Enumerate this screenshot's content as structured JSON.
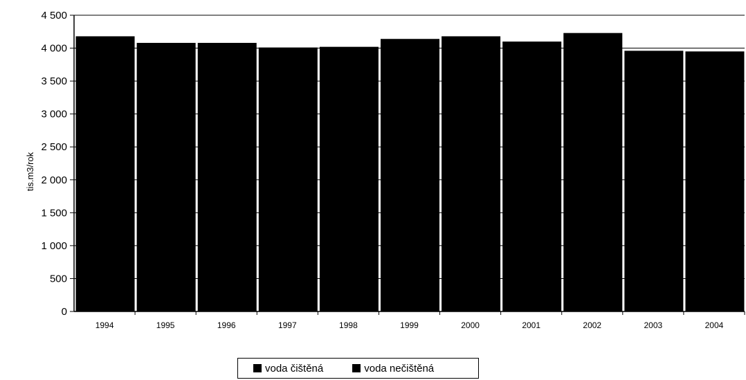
{
  "chart_data": {
    "type": "bar",
    "stacked": true,
    "categories": [
      "1994",
      "1995",
      "1996",
      "1997",
      "1998",
      "1999",
      "2000",
      "2001",
      "2002",
      "2003",
      "2004"
    ],
    "series": [
      {
        "name": "voda čištěná",
        "values": [
          0,
          0,
          0,
          0,
          0,
          0,
          0,
          0,
          0,
          0,
          0
        ],
        "color": "#000000"
      },
      {
        "name": "voda nečištěná",
        "values": [
          4180,
          4080,
          4080,
          4010,
          4020,
          4140,
          4180,
          4100,
          4230,
          3960,
          3950
        ],
        "color": "#000000"
      }
    ],
    "ylabel": "tis.m3/rok",
    "ylim": [
      0,
      4500
    ],
    "yticks": [
      0,
      500,
      1000,
      1500,
      2000,
      2500,
      3000,
      3500,
      4000,
      4500
    ],
    "ytick_labels": [
      "0",
      "500",
      "1 000",
      "1 500",
      "2 000",
      "2 500",
      "3 000",
      "3 500",
      "4 000",
      "4 500"
    ],
    "grid": true,
    "legend_position": "bottom"
  }
}
